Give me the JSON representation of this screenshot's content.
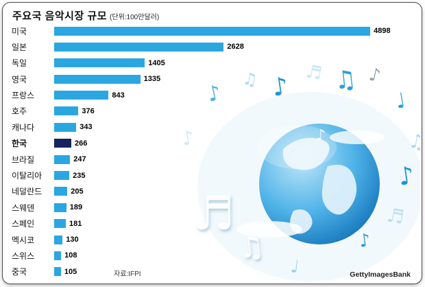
{
  "header": {
    "title": "주요국 음악시장 규모",
    "unit": "(단위:100만달러)"
  },
  "footer": {
    "source": "자료:IFPI",
    "credit": "GettyImagesBank"
  },
  "colors": {
    "bar": "#2aa7e1",
    "highlight_bar": "#16235e"
  },
  "decoration": {
    "description": "globe-with-music-notes-illustration",
    "notes": [
      "♪",
      "♫",
      "♪",
      "♬",
      "♫",
      "♪",
      "♩",
      "♫",
      "♪",
      "♬",
      "♪",
      "♫",
      "♬",
      "♪",
      "♩",
      "♪"
    ]
  },
  "chart_data": {
    "type": "bar",
    "orientation": "horizontal",
    "title": "주요국 음악시장 규모",
    "unit_label": "단위:100만달러",
    "categories": [
      "미국",
      "일본",
      "독일",
      "영국",
      "프랑스",
      "호주",
      "캐나다",
      "한국",
      "브라질",
      "이탈리아",
      "네덜란드",
      "스웨덴",
      "스페인",
      "멕시코",
      "스위스",
      "중국"
    ],
    "values": [
      4898,
      2628,
      1405,
      1335,
      843,
      376,
      343,
      266,
      247,
      235,
      205,
      189,
      181,
      130,
      108,
      105
    ],
    "highlight_category": "한국",
    "xlim": [
      0,
      4898
    ],
    "legend": false,
    "grid": false,
    "source": "자료:IFPI"
  }
}
